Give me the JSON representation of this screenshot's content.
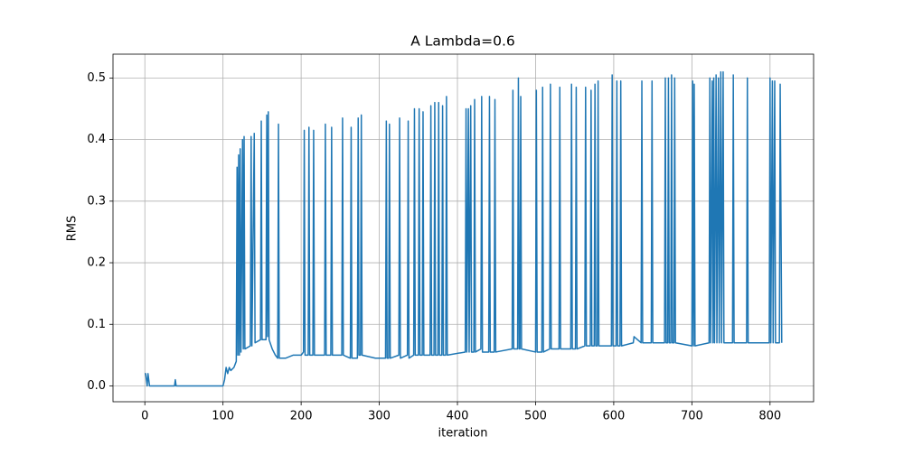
{
  "chart_data": {
    "type": "line",
    "title": "A Lambda=0.6",
    "xlabel": "iteration",
    "ylabel": "RMS",
    "x": [
      0,
      1,
      3,
      4,
      6,
      38,
      39,
      40,
      100,
      102,
      104,
      106,
      108,
      110,
      114,
      117,
      118,
      119,
      120,
      121,
      122,
      123,
      125,
      126,
      127,
      128,
      135,
      136,
      137,
      140,
      141,
      148,
      149,
      150,
      155,
      156,
      157,
      158,
      159,
      163,
      167,
      170,
      171,
      172,
      180,
      190,
      200,
      203,
      204,
      205,
      209,
      210,
      211,
      215,
      216,
      217,
      230,
      231,
      232,
      238,
      239,
      240,
      252,
      253,
      254,
      263,
      264,
      265,
      272,
      273,
      274,
      276,
      277,
      278,
      295,
      308,
      309,
      310,
      312,
      313,
      314,
      325,
      326,
      327,
      336,
      337,
      338,
      344,
      345,
      346,
      350,
      351,
      352,
      355,
      356,
      357,
      365,
      366,
      367,
      370,
      371,
      372,
      375,
      376,
      377,
      380,
      381,
      382,
      385,
      386,
      387,
      410,
      411,
      412,
      414,
      415,
      417,
      418,
      421,
      422,
      423,
      430,
      431,
      432,
      440,
      441,
      442,
      447,
      448,
      449,
      470,
      471,
      472,
      477,
      478,
      479,
      480,
      481,
      482,
      500,
      501,
      502,
      508,
      509,
      510,
      518,
      519,
      520,
      530,
      531,
      532,
      545,
      546,
      547,
      551,
      552,
      553,
      563,
      564,
      565,
      570,
      571,
      572,
      575,
      576,
      577,
      579,
      580,
      581,
      597,
      598,
      599,
      603,
      604,
      605,
      608,
      609,
      610,
      625,
      626,
      635,
      636,
      637,
      648,
      649,
      650,
      665,
      666,
      667,
      669,
      670,
      671,
      673,
      674,
      675,
      677,
      678,
      679,
      700,
      701,
      702,
      703,
      704,
      722,
      723,
      724,
      726,
      727,
      728,
      729,
      731,
      732,
      734,
      735,
      737,
      738,
      740,
      741,
      752,
      753,
      754,
      770,
      771,
      772,
      799,
      800,
      801,
      803,
      804,
      806,
      807,
      812,
      813,
      815
    ],
    "values": [
      0.02,
      0.02,
      0,
      0.02,
      0,
      0,
      0.01,
      0,
      0,
      0.01,
      0.03,
      0.02,
      0.03,
      0.025,
      0.03,
      0.04,
      0.355,
      0.05,
      0.375,
      0.05,
      0.385,
      0.055,
      0.4,
      0.06,
      0.405,
      0.06,
      0.065,
      0.405,
      0.065,
      0.41,
      0.07,
      0.075,
      0.43,
      0.075,
      0.075,
      0.44,
      0.08,
      0.445,
      0.075,
      0.06,
      0.05,
      0.045,
      0.425,
      0.045,
      0.045,
      0.05,
      0.05,
      0.055,
      0.415,
      0.05,
      0.05,
      0.42,
      0.05,
      0.05,
      0.415,
      0.05,
      0.05,
      0.425,
      0.05,
      0.05,
      0.42,
      0.05,
      0.05,
      0.435,
      0.05,
      0.045,
      0.42,
      0.045,
      0.045,
      0.435,
      0.05,
      0.05,
      0.44,
      0.05,
      0.045,
      0.045,
      0.43,
      0.045,
      0.045,
      0.425,
      0.045,
      0.05,
      0.435,
      0.045,
      0.05,
      0.43,
      0.045,
      0.05,
      0.45,
      0.05,
      0.05,
      0.45,
      0.05,
      0.05,
      0.445,
      0.05,
      0.05,
      0.455,
      0.05,
      0.05,
      0.46,
      0.05,
      0.05,
      0.46,
      0.05,
      0.05,
      0.455,
      0.05,
      0.05,
      0.47,
      0.05,
      0.055,
      0.45,
      0.055,
      0.45,
      0.055,
      0.455,
      0.055,
      0.055,
      0.465,
      0.055,
      0.06,
      0.47,
      0.055,
      0.055,
      0.47,
      0.055,
      0.055,
      0.465,
      0.055,
      0.06,
      0.48,
      0.06,
      0.06,
      0.5,
      0.06,
      0.06,
      0.47,
      0.06,
      0.055,
      0.48,
      0.055,
      0.055,
      0.485,
      0.055,
      0.06,
      0.49,
      0.06,
      0.06,
      0.485,
      0.06,
      0.06,
      0.49,
      0.06,
      0.06,
      0.485,
      0.06,
      0.065,
      0.485,
      0.065,
      0.065,
      0.48,
      0.065,
      0.065,
      0.49,
      0.065,
      0.065,
      0.495,
      0.065,
      0.065,
      0.505,
      0.065,
      0.065,
      0.495,
      0.065,
      0.065,
      0.495,
      0.065,
      0.07,
      0.08,
      0.07,
      0.495,
      0.07,
      0.07,
      0.495,
      0.07,
      0.07,
      0.5,
      0.07,
      0.07,
      0.5,
      0.07,
      0.07,
      0.505,
      0.07,
      0.07,
      0.5,
      0.07,
      0.065,
      0.495,
      0.065,
      0.49,
      0.065,
      0.07,
      0.5,
      0.07,
      0.495,
      0.07,
      0.5,
      0.07,
      0.505,
      0.07,
      0.5,
      0.07,
      0.51,
      0.07,
      0.51,
      0.07,
      0.07,
      0.505,
      0.07,
      0.07,
      0.5,
      0.07,
      0.07,
      0.5,
      0.07,
      0.495,
      0.07,
      0.495,
      0.07,
      0.07,
      0.49,
      0.07
    ],
    "color": "#1f77b4",
    "grid": true,
    "xlim": [
      -40.75,
      855.75
    ],
    "ylim": [
      -0.0257,
      0.5387
    ],
    "xticks": [
      0,
      100,
      200,
      300,
      400,
      500,
      600,
      700,
      800
    ],
    "yticks": [
      {
        "value": 0,
        "label": "0.0"
      },
      0.1,
      0.2,
      0.3,
      0.4,
      0.5
    ]
  }
}
